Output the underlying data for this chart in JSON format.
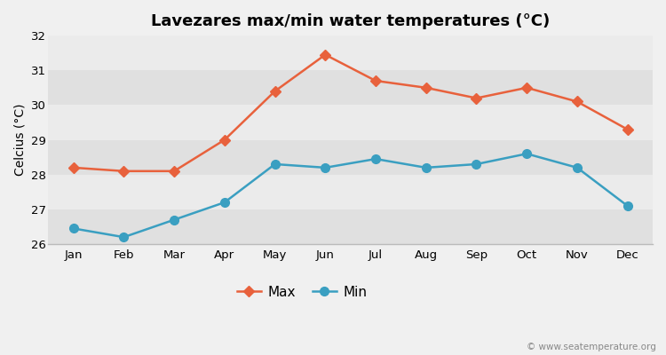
{
  "title": "Lavezares max/min water temperatures (°C)",
  "ylabel": "Celcius (°C)",
  "months": [
    "Jan",
    "Feb",
    "Mar",
    "Apr",
    "May",
    "Jun",
    "Jul",
    "Aug",
    "Sep",
    "Oct",
    "Nov",
    "Dec"
  ],
  "max_values": [
    28.2,
    28.1,
    28.1,
    29.0,
    30.4,
    31.45,
    30.7,
    30.5,
    30.2,
    30.5,
    30.1,
    29.3
  ],
  "min_values": [
    26.45,
    26.2,
    26.7,
    27.2,
    28.3,
    28.2,
    28.45,
    28.2,
    28.3,
    28.6,
    28.2,
    27.1
  ],
  "max_color": "#e8613c",
  "min_color": "#3a9fc1",
  "background_color": "#f0f0f0",
  "band_light": "#ebebeb",
  "band_dark": "#e0e0e0",
  "ylim": [
    26.0,
    32.0
  ],
  "yticks": [
    26,
    27,
    28,
    29,
    30,
    31,
    32
  ],
  "legend_labels": [
    "Max",
    "Min"
  ],
  "watermark": "© www.seatemperature.org",
  "title_fontsize": 13,
  "label_fontsize": 10,
  "tick_fontsize": 9.5,
  "linewidth": 1.8,
  "max_markersize": 6,
  "min_markersize": 7
}
